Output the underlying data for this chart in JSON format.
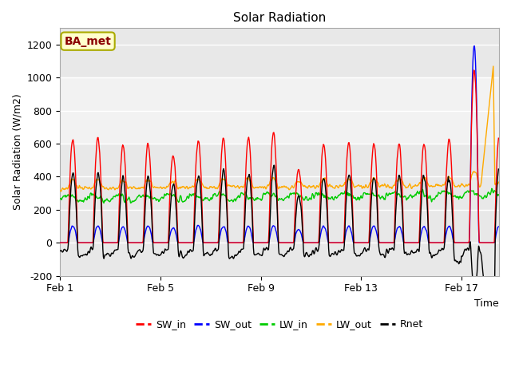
{
  "title": "Solar Radiation",
  "xlabel": "Time",
  "ylabel": "Solar Radiation (W/m2)",
  "ylim": [
    -200,
    1300
  ],
  "yticks": [
    -200,
    0,
    200,
    400,
    600,
    800,
    1000,
    1200
  ],
  "xlim_start": 0,
  "xlim_end": 17.5,
  "xtick_positions": [
    0,
    4,
    8,
    12,
    16
  ],
  "xtick_labels": [
    "Feb 1",
    "Feb 5",
    "Feb 9",
    "Feb 13",
    "Feb 17"
  ],
  "legend_labels": [
    "SW_in",
    "SW_out",
    "LW_in",
    "LW_out",
    "Rnet"
  ],
  "colors": {
    "SW_in": "#ff0000",
    "SW_out": "#0000ff",
    "LW_in": "#00cc00",
    "LW_out": "#ffaa00",
    "Rnet": "#000000"
  },
  "annotation_text": "BA_met",
  "annotation_color": "#8b0000",
  "annotation_bg": "#ffffcc",
  "shaded_ymin": 600,
  "shaded_ymax": 1000,
  "plot_bg": "#e8e8e8",
  "shaded_bg": "#d0d0d0",
  "title_fontsize": 11,
  "label_fontsize": 9,
  "tick_fontsize": 9,
  "legend_fontsize": 9
}
